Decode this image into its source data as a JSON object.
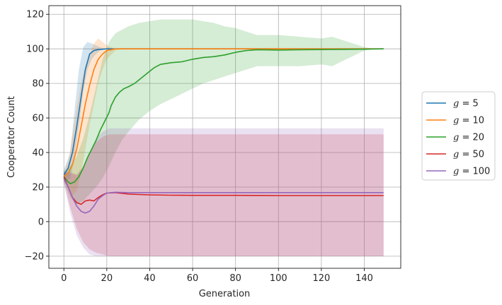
{
  "chart_data": {
    "type": "line",
    "xlabel": "Generation",
    "ylabel": "Cooperator Count",
    "xlim": [
      -7,
      157
    ],
    "ylim": [
      -27,
      125
    ],
    "xticks": [
      0,
      20,
      40,
      60,
      80,
      100,
      120,
      140
    ],
    "yticks": [
      -20,
      0,
      20,
      40,
      60,
      80,
      100,
      120
    ],
    "grid": true,
    "legend_position": "right-outside",
    "series": [
      {
        "name_var": "g",
        "name_op": " = ",
        "name_val": "5",
        "color": "#1f77b4",
        "points": [
          [
            0,
            27
          ],
          [
            2,
            31
          ],
          [
            4,
            40
          ],
          [
            6,
            55
          ],
          [
            8,
            72
          ],
          [
            10,
            88
          ],
          [
            12,
            97
          ],
          [
            14,
            99
          ],
          [
            16,
            99.6
          ],
          [
            20,
            100
          ],
          [
            149,
            100
          ]
        ],
        "band_lower": [
          [
            0,
            24
          ],
          [
            3,
            25
          ],
          [
            5,
            38
          ],
          [
            7,
            55
          ],
          [
            9,
            75
          ],
          [
            11,
            88
          ],
          [
            13,
            94
          ],
          [
            15,
            97
          ],
          [
            17,
            99
          ],
          [
            20,
            100
          ],
          [
            22,
            100
          ]
        ],
        "band_upper": [
          [
            0,
            30
          ],
          [
            3,
            40
          ],
          [
            5,
            65
          ],
          [
            7,
            88
          ],
          [
            9,
            101
          ],
          [
            11,
            104
          ],
          [
            13,
            103
          ],
          [
            15,
            102
          ],
          [
            17,
            101
          ],
          [
            20,
            100
          ],
          [
            22,
            100
          ]
        ]
      },
      {
        "name_var": "g",
        "name_op": " = ",
        "name_val": "10",
        "color": "#ff7f0e",
        "points": [
          [
            0,
            26
          ],
          [
            2,
            28
          ],
          [
            4,
            33
          ],
          [
            6,
            42
          ],
          [
            8,
            55
          ],
          [
            10,
            68
          ],
          [
            12,
            79
          ],
          [
            14,
            88
          ],
          [
            16,
            94
          ],
          [
            18,
            97
          ],
          [
            20,
            99
          ],
          [
            24,
            100
          ],
          [
            149,
            100
          ]
        ],
        "band_lower": [
          [
            0,
            24
          ],
          [
            2,
            20
          ],
          [
            4,
            15
          ],
          [
            6,
            18
          ],
          [
            8,
            28
          ],
          [
            10,
            42
          ],
          [
            12,
            56
          ],
          [
            14,
            68
          ],
          [
            16,
            80
          ],
          [
            18,
            88
          ],
          [
            20,
            94
          ],
          [
            24,
            99
          ],
          [
            28,
            100
          ]
        ],
        "band_upper": [
          [
            0,
            29
          ],
          [
            2,
            35
          ],
          [
            4,
            50
          ],
          [
            6,
            66
          ],
          [
            8,
            80
          ],
          [
            10,
            90
          ],
          [
            12,
            97
          ],
          [
            14,
            103
          ],
          [
            16,
            106
          ],
          [
            18,
            104
          ],
          [
            20,
            102
          ],
          [
            24,
            100
          ],
          [
            28,
            100
          ]
        ]
      },
      {
        "name_var": "g",
        "name_op": " = ",
        "name_val": "20",
        "color": "#2ca02c",
        "points": [
          [
            0,
            26
          ],
          [
            2,
            23
          ],
          [
            3,
            22
          ],
          [
            5,
            23
          ],
          [
            7,
            26
          ],
          [
            9,
            31
          ],
          [
            11,
            37
          ],
          [
            13,
            42
          ],
          [
            15,
            47
          ],
          [
            17,
            53
          ],
          [
            19,
            58
          ],
          [
            21,
            63
          ],
          [
            22,
            67
          ],
          [
            24,
            72
          ],
          [
            26,
            75
          ],
          [
            28,
            77
          ],
          [
            30,
            78
          ],
          [
            33,
            80
          ],
          [
            36,
            83
          ],
          [
            39,
            86
          ],
          [
            42,
            89
          ],
          [
            45,
            91
          ],
          [
            50,
            92
          ],
          [
            55,
            92.5
          ],
          [
            60,
            94
          ],
          [
            65,
            95
          ],
          [
            70,
            95.5
          ],
          [
            75,
            96.5
          ],
          [
            80,
            98
          ],
          [
            85,
            99
          ],
          [
            90,
            99.5
          ],
          [
            100,
            99.3
          ],
          [
            110,
            99.5
          ],
          [
            120,
            99.6
          ],
          [
            130,
            99.7
          ],
          [
            140,
            99.8
          ],
          [
            149,
            100
          ]
        ],
        "band_lower": [
          [
            0,
            23
          ],
          [
            3,
            14
          ],
          [
            6,
            10
          ],
          [
            9,
            12
          ],
          [
            12,
            16
          ],
          [
            15,
            20
          ],
          [
            18,
            25
          ],
          [
            21,
            32
          ],
          [
            24,
            40
          ],
          [
            27,
            47
          ],
          [
            30,
            52
          ],
          [
            35,
            59
          ],
          [
            40,
            64
          ],
          [
            45,
            68
          ],
          [
            50,
            71
          ],
          [
            55,
            74
          ],
          [
            60,
            77
          ],
          [
            65,
            80
          ],
          [
            70,
            82
          ],
          [
            75,
            84
          ],
          [
            80,
            86
          ],
          [
            85,
            88
          ],
          [
            90,
            90
          ],
          [
            100,
            90
          ],
          [
            110,
            90
          ],
          [
            120,
            91
          ],
          [
            125,
            90
          ],
          [
            130,
            93
          ],
          [
            135,
            96
          ],
          [
            140,
            99
          ],
          [
            145,
            100
          ],
          [
            149,
            100
          ]
        ],
        "band_upper": [
          [
            0,
            29
          ],
          [
            3,
            32
          ],
          [
            6,
            38
          ],
          [
            9,
            48
          ],
          [
            12,
            62
          ],
          [
            15,
            78
          ],
          [
            18,
            94
          ],
          [
            21,
            104
          ],
          [
            24,
            109
          ],
          [
            27,
            111
          ],
          [
            30,
            113
          ],
          [
            35,
            115
          ],
          [
            40,
            116
          ],
          [
            45,
            117
          ],
          [
            50,
            117
          ],
          [
            55,
            117
          ],
          [
            60,
            117
          ],
          [
            65,
            116
          ],
          [
            70,
            115
          ],
          [
            75,
            113
          ],
          [
            80,
            112
          ],
          [
            85,
            110
          ],
          [
            90,
            108
          ],
          [
            100,
            108
          ],
          [
            110,
            107
          ],
          [
            120,
            106
          ],
          [
            125,
            107
          ],
          [
            130,
            105
          ],
          [
            135,
            103
          ],
          [
            140,
            101
          ],
          [
            145,
            100
          ],
          [
            149,
            100
          ]
        ]
      },
      {
        "name_var": "g",
        "name_op": " = ",
        "name_val": "50",
        "color": "#d62728",
        "points": [
          [
            0,
            26
          ],
          [
            2,
            20
          ],
          [
            4,
            14
          ],
          [
            6,
            11
          ],
          [
            8,
            10
          ],
          [
            10,
            12
          ],
          [
            12,
            12.5
          ],
          [
            14,
            12
          ],
          [
            16,
            14
          ],
          [
            18,
            15.5
          ],
          [
            20,
            16.5
          ],
          [
            24,
            16.8
          ],
          [
            30,
            16
          ],
          [
            35,
            15.7
          ],
          [
            40,
            15.5
          ],
          [
            50,
            15.3
          ],
          [
            60,
            15.2
          ],
          [
            80,
            15.2
          ],
          [
            100,
            15.1
          ],
          [
            120,
            15.1
          ],
          [
            149,
            15.1
          ]
        ],
        "band_lower": [
          [
            0,
            23
          ],
          [
            3,
            8
          ],
          [
            6,
            -4
          ],
          [
            9,
            -12
          ],
          [
            12,
            -16
          ],
          [
            15,
            -18
          ],
          [
            18,
            -19
          ],
          [
            21,
            -20
          ],
          [
            30,
            -20
          ],
          [
            149,
            -20
          ]
        ],
        "band_upper": [
          [
            0,
            29
          ],
          [
            3,
            28
          ],
          [
            6,
            27
          ],
          [
            9,
            32
          ],
          [
            12,
            40
          ],
          [
            15,
            46
          ],
          [
            18,
            49
          ],
          [
            21,
            50.5
          ],
          [
            30,
            50.5
          ],
          [
            149,
            50.5
          ]
        ]
      },
      {
        "name_var": "g",
        "name_op": " = ",
        "name_val": "100",
        "color": "#9467bd",
        "points": [
          [
            0,
            25
          ],
          [
            2,
            20
          ],
          [
            4,
            14
          ],
          [
            6,
            9
          ],
          [
            8,
            6
          ],
          [
            10,
            5
          ],
          [
            12,
            6
          ],
          [
            14,
            9
          ],
          [
            16,
            13
          ],
          [
            18,
            15
          ],
          [
            20,
            16.5
          ],
          [
            24,
            17
          ],
          [
            30,
            16.8
          ],
          [
            40,
            16.8
          ],
          [
            60,
            16.8
          ],
          [
            80,
            16.8
          ],
          [
            100,
            16.8
          ],
          [
            120,
            16.8
          ],
          [
            149,
            16.8
          ]
        ],
        "band_lower": [
          [
            0,
            22
          ],
          [
            3,
            5
          ],
          [
            6,
            -8
          ],
          [
            9,
            -15
          ],
          [
            12,
            -19
          ],
          [
            15,
            -20
          ],
          [
            18,
            -20
          ],
          [
            21,
            -20
          ],
          [
            30,
            -20
          ],
          [
            149,
            -20
          ]
        ],
        "band_upper": [
          [
            0,
            28
          ],
          [
            3,
            29
          ],
          [
            6,
            27
          ],
          [
            9,
            31
          ],
          [
            12,
            40
          ],
          [
            15,
            48
          ],
          [
            18,
            52
          ],
          [
            21,
            54
          ],
          [
            30,
            54
          ],
          [
            149,
            54
          ]
        ]
      }
    ]
  }
}
